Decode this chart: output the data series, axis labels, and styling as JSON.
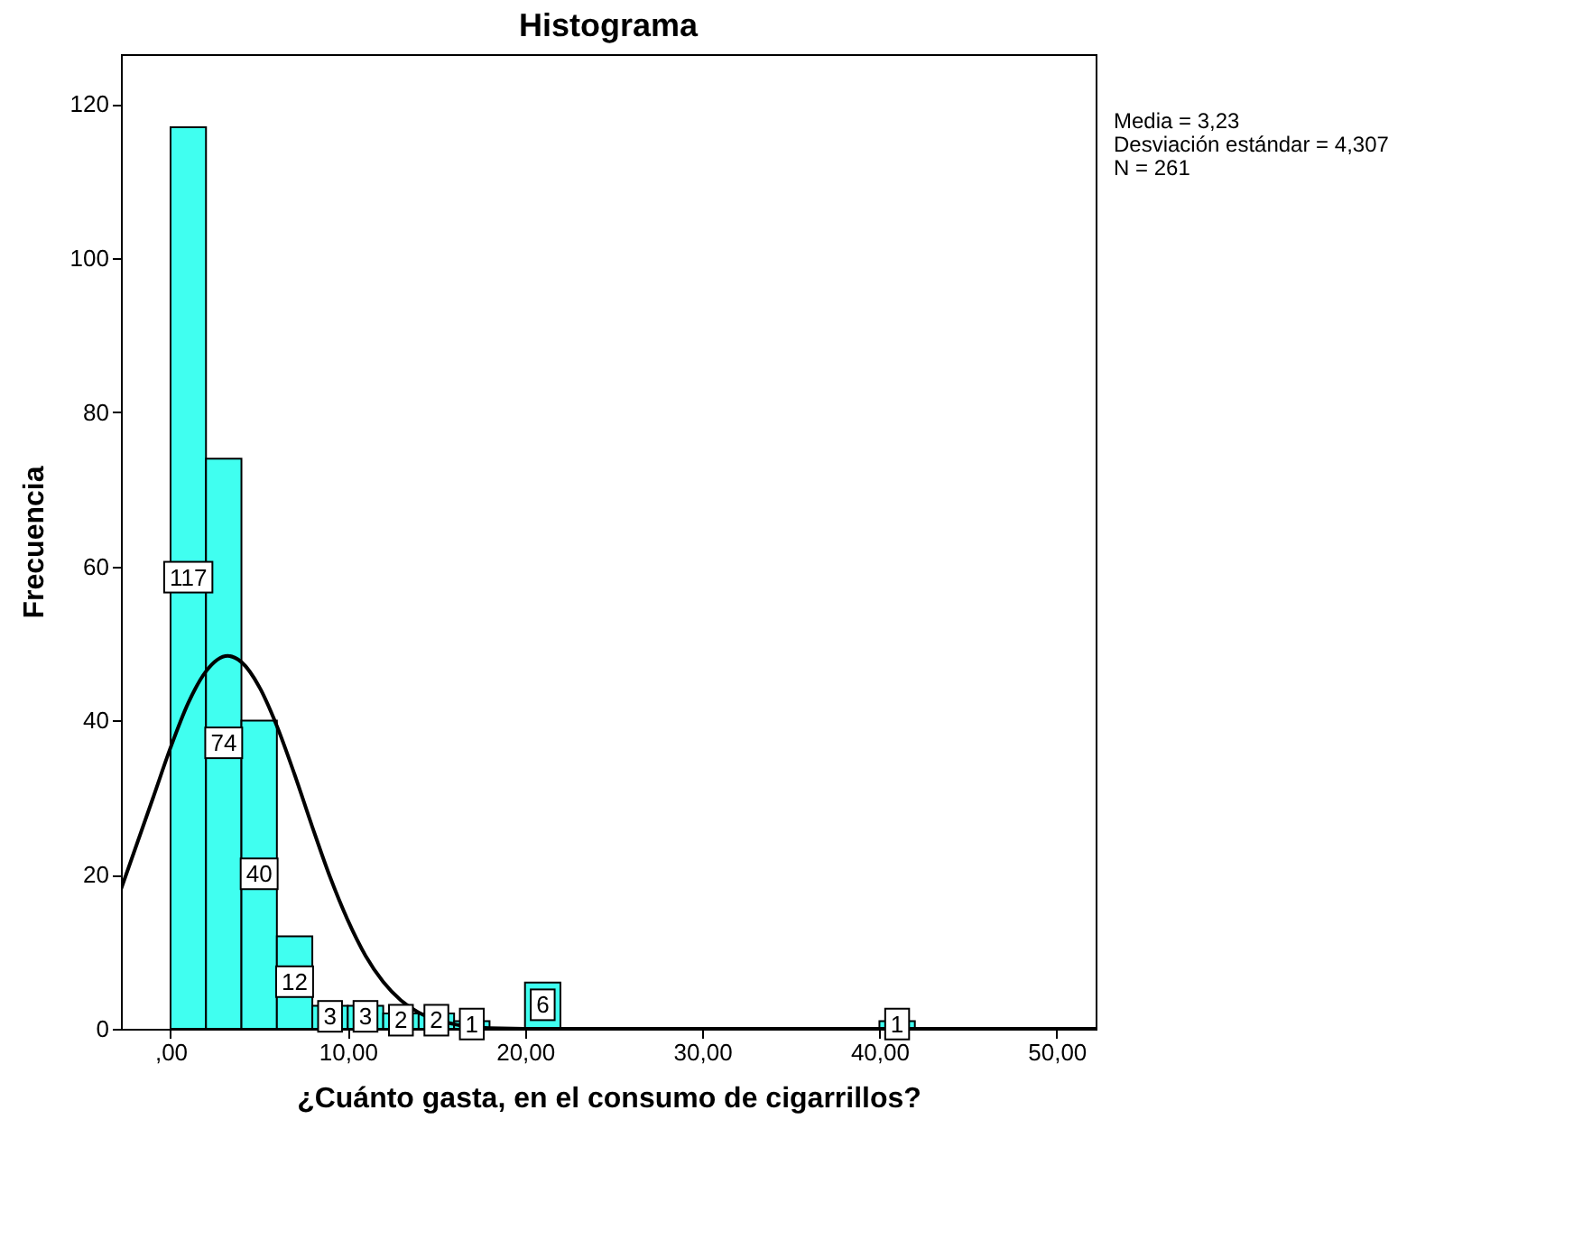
{
  "chart_data": {
    "type": "histogram",
    "title": "Histograma",
    "xlabel": "¿Cuánto gasta, en el consumo de cigarrillos?",
    "ylabel": "Frecuencia",
    "bins": [
      0,
      2,
      4,
      6,
      8,
      10,
      12,
      14,
      16,
      18,
      20,
      22,
      24,
      26,
      28,
      30,
      32,
      34,
      36,
      38,
      40,
      42
    ],
    "values": [
      117,
      74,
      40,
      12,
      3,
      3,
      2,
      2,
      1,
      0,
      6,
      0,
      0,
      0,
      0,
      0,
      0,
      0,
      0,
      0,
      1
    ],
    "value_labels": [
      "117",
      "74",
      "40",
      "12",
      "3",
      "3",
      "2",
      "2",
      "1",
      null,
      "6",
      null,
      null,
      null,
      null,
      null,
      null,
      null,
      null,
      null,
      "1"
    ],
    "color": "#40fff0",
    "series": [
      {
        "type": "line",
        "color": "#000000",
        "x": [
          -2.8,
          -1,
          0,
          1,
          2,
          3.23,
          4,
          5,
          6,
          7,
          8,
          9,
          10,
          11,
          12,
          13,
          14,
          16,
          18,
          22,
          30,
          40,
          52.2
        ],
        "values": [
          18.1,
          29.9,
          36.5,
          42.3,
          46.4,
          48.4,
          47.6,
          44.4,
          39.3,
          33.0,
          26.2,
          19.7,
          14.1,
          9.5,
          6.1,
          3.7,
          2.1,
          0.6,
          0.1,
          0,
          0,
          0,
          0
        ]
      }
    ],
    "xlim": [
      -2.8,
      52.2
    ],
    "ylim": [
      0,
      126.5
    ],
    "xticks": [
      {
        "value": 0,
        "label": ",00"
      },
      {
        "value": 10,
        "label": "10,00"
      },
      {
        "value": 20,
        "label": "20,00"
      },
      {
        "value": 30,
        "label": "30,00"
      },
      {
        "value": 40,
        "label": "40,00"
      },
      {
        "value": 50,
        "label": "50,00"
      }
    ],
    "yticks": [
      0,
      20,
      40,
      60,
      80,
      100,
      120
    ],
    "annotations": [
      "Media = 3,23",
      "Desviación estándar = 4,307",
      "N = 261"
    ]
  }
}
